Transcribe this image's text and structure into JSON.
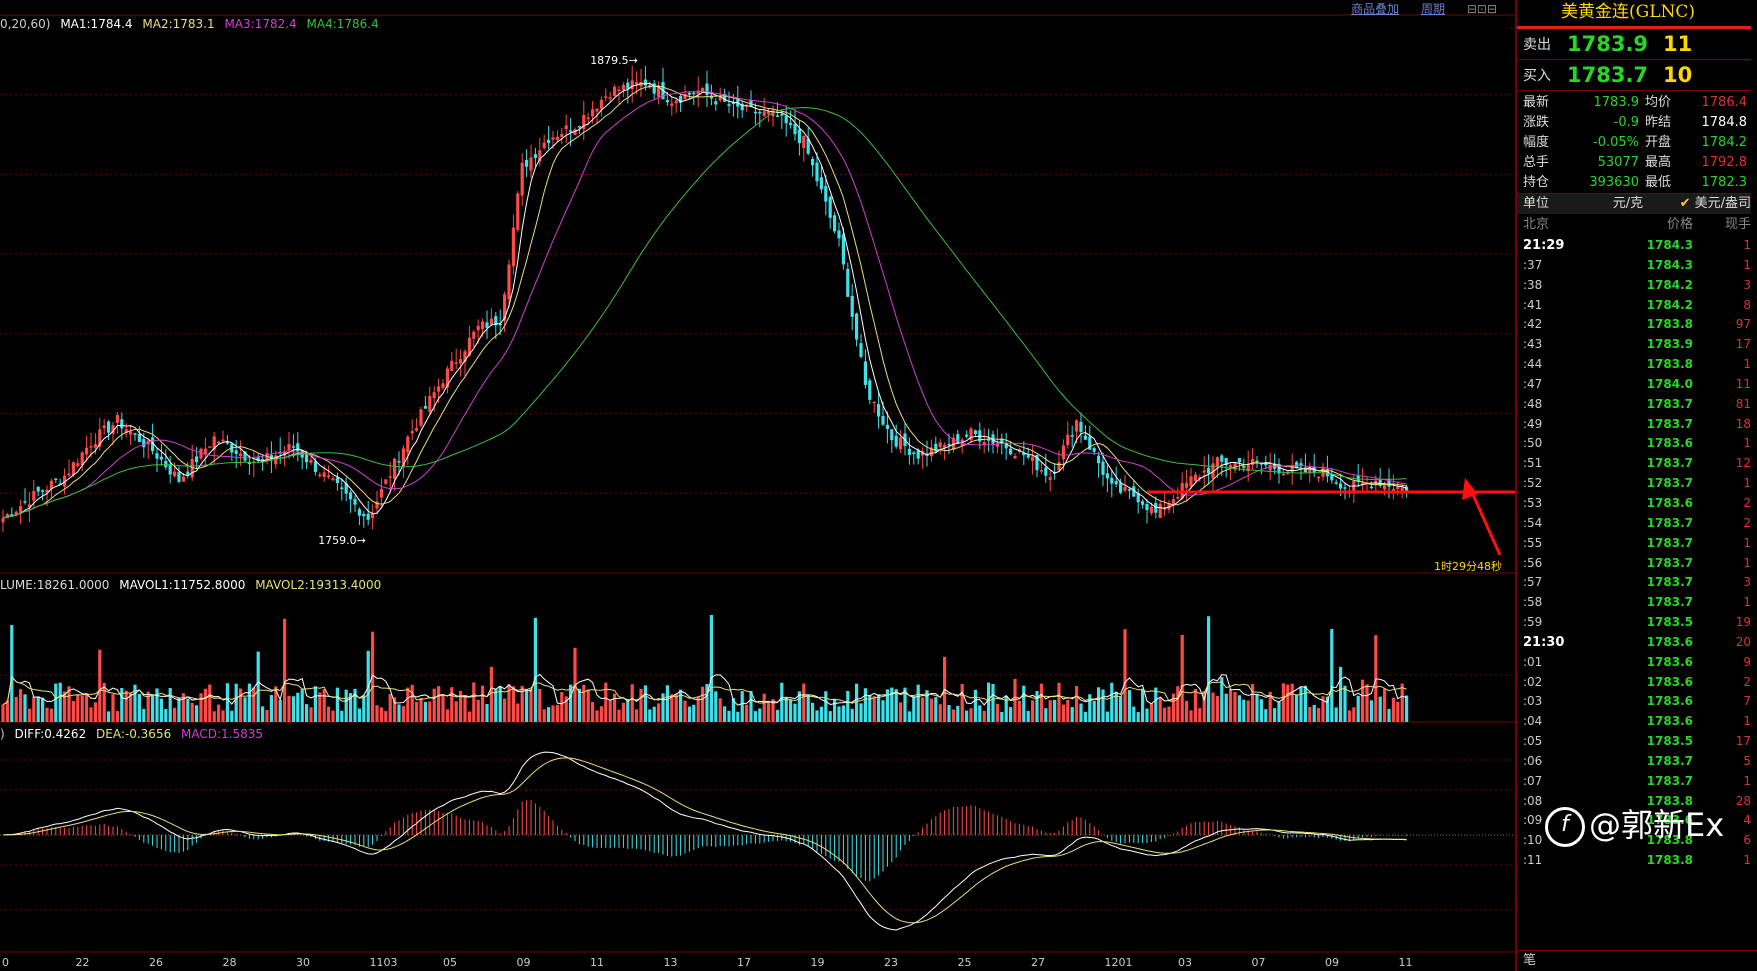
{
  "legends": {
    "price": {
      "prefix": "0,20,60)",
      "ma1": "MA1:1784.4",
      "ma2": "MA2:1783.1",
      "ma3": "MA3:1782.4",
      "ma4": "MA4:1786.4"
    },
    "volume": {
      "vol": "LUME:18261.0000",
      "mavol1": "MAVOL1:11752.8000",
      "mavol2": "MAVOL2:19313.4000"
    },
    "macd": {
      "prefix": ")",
      "diff": "DIFF:0.4262",
      "dea": "DEA:-0.3656",
      "macd": "MACD:1.5835"
    }
  },
  "top_links": [
    "商品叠加",
    "周期"
  ],
  "colors": {
    "up": "#ff4a4a",
    "down": "#3fe0e8",
    "ma1": "#ffffff",
    "ma2": "#e6e07a",
    "ma3": "#d040d0",
    "ma4": "#3cbe3c",
    "grid": "#7a0000"
  },
  "chart_data": {
    "type": "candlestick",
    "price_range": [
      1752,
      1884
    ],
    "annotations": {
      "high": "1879.5",
      "low": "1759.0",
      "timer": "1时29分48秒"
    },
    "x_labels": [
      "0",
      "22",
      "26",
      "28",
      "30",
      "1103",
      "05",
      "09",
      "11",
      "13",
      "17",
      "19",
      "23",
      "25",
      "27",
      "1201",
      "03",
      "07",
      "09",
      "11"
    ],
    "close_anchors": [
      [
        0,
        1765
      ],
      [
        8,
        1771
      ],
      [
        14,
        1775
      ],
      [
        20,
        1783
      ],
      [
        26,
        1788
      ],
      [
        34,
        1781
      ],
      [
        40,
        1774
      ],
      [
        48,
        1784
      ],
      [
        58,
        1778
      ],
      [
        66,
        1782
      ],
      [
        76,
        1772
      ],
      [
        83,
        1765
      ],
      [
        92,
        1784
      ],
      [
        100,
        1798
      ],
      [
        108,
        1810
      ],
      [
        113,
        1812
      ],
      [
        118,
        1848
      ],
      [
        124,
        1855
      ],
      [
        130,
        1858
      ],
      [
        138,
        1866
      ],
      [
        146,
        1868
      ],
      [
        152,
        1864
      ],
      [
        158,
        1866
      ],
      [
        166,
        1862
      ],
      [
        176,
        1860
      ],
      [
        182,
        1854
      ],
      [
        190,
        1830
      ],
      [
        196,
        1796
      ],
      [
        202,
        1784
      ],
      [
        208,
        1780
      ],
      [
        214,
        1782
      ],
      [
        220,
        1785
      ],
      [
        226,
        1783
      ],
      [
        232,
        1780
      ],
      [
        238,
        1775
      ],
      [
        244,
        1788
      ],
      [
        252,
        1772
      ],
      [
        258,
        1770
      ],
      [
        262,
        1766
      ],
      [
        270,
        1774
      ],
      [
        276,
        1778
      ],
      [
        284,
        1778
      ],
      [
        294,
        1776
      ],
      [
        300,
        1776
      ],
      [
        306,
        1772
      ],
      [
        312,
        1774
      ],
      [
        318,
        1772
      ]
    ],
    "volume_range": [
      0,
      40000
    ],
    "macd_range": [
      -4.3,
      3.6
    ]
  },
  "panel": {
    "title": "美黄金连(GLNC)",
    "sell": {
      "label": "卖出",
      "price": "1783.9",
      "qty": "11"
    },
    "buy": {
      "label": "买入",
      "price": "1783.7",
      "qty": "10"
    },
    "stats": [
      {
        "k": "最新",
        "v": "1783.9",
        "k2": "均价",
        "v2": "1786.4",
        "c2": "#e03030"
      },
      {
        "k": "涨跌",
        "v": "-0.9",
        "k2": "昨结",
        "v2": "1784.8",
        "c2": "#ffffff"
      },
      {
        "k": "幅度",
        "v": "-0.05%",
        "k2": "开盘",
        "v2": "1784.2",
        "c2": "#2ad52a"
      },
      {
        "k": "总手",
        "v": "53077",
        "k2": "最高",
        "v2": "1792.8",
        "c2": "#e03030"
      },
      {
        "k": "持仓",
        "v": "393630",
        "k2": "最低",
        "v2": "1782.3",
        "c2": "#2ad52a"
      }
    ],
    "unit": {
      "label": "单位",
      "unit": "元/克",
      "currency": "美元/盎司"
    },
    "tick_head": {
      "time": "北京",
      "price": "价格",
      "qty": "现手"
    },
    "ticks": [
      {
        "t": "21:29",
        "p": "1784.3",
        "q": "1",
        "major": true
      },
      {
        "t": ":37",
        "p": "1784.3",
        "q": "1"
      },
      {
        "t": ":38",
        "p": "1784.2",
        "q": "3"
      },
      {
        "t": ":41",
        "p": "1784.2",
        "q": "8"
      },
      {
        "t": ":42",
        "p": "1783.8",
        "q": "97"
      },
      {
        "t": ":43",
        "p": "1783.9",
        "q": "17"
      },
      {
        "t": ":44",
        "p": "1783.8",
        "q": "1"
      },
      {
        "t": ":47",
        "p": "1784.0",
        "q": "11"
      },
      {
        "t": ":48",
        "p": "1783.7",
        "q": "81"
      },
      {
        "t": ":49",
        "p": "1783.7",
        "q": "18"
      },
      {
        "t": ":50",
        "p": "1783.6",
        "q": "1"
      },
      {
        "t": ":51",
        "p": "1783.7",
        "q": "12"
      },
      {
        "t": ":52",
        "p": "1783.7",
        "q": "1"
      },
      {
        "t": ":53",
        "p": "1783.6",
        "q": "2"
      },
      {
        "t": ":54",
        "p": "1783.7",
        "q": "2"
      },
      {
        "t": ":55",
        "p": "1783.7",
        "q": "1"
      },
      {
        "t": ":56",
        "p": "1783.7",
        "q": "1"
      },
      {
        "t": ":57",
        "p": "1783.7",
        "q": "3"
      },
      {
        "t": ":58",
        "p": "1783.7",
        "q": "1"
      },
      {
        "t": ":59",
        "p": "1783.5",
        "q": "19"
      },
      {
        "t": "21:30",
        "p": "1783.6",
        "q": "20",
        "major": true
      },
      {
        "t": ":01",
        "p": "1783.6",
        "q": "9"
      },
      {
        "t": ":02",
        "p": "1783.6",
        "q": "2"
      },
      {
        "t": ":03",
        "p": "1783.6",
        "q": "7"
      },
      {
        "t": ":04",
        "p": "1783.6",
        "q": "1"
      },
      {
        "t": ":05",
        "p": "1783.5",
        "q": "17"
      },
      {
        "t": ":06",
        "p": "1783.7",
        "q": "5"
      },
      {
        "t": ":07",
        "p": "1783.7",
        "q": "1"
      },
      {
        "t": ":08",
        "p": "1783.8",
        "q": "28"
      },
      {
        "t": ":09",
        "p": "1783.6",
        "q": "4"
      },
      {
        "t": ":10",
        "p": "1783.8",
        "q": "6"
      },
      {
        "t": ":11",
        "p": "1783.8",
        "q": "1"
      }
    ],
    "footer": "笔"
  },
  "watermark": "@郭新Ex"
}
